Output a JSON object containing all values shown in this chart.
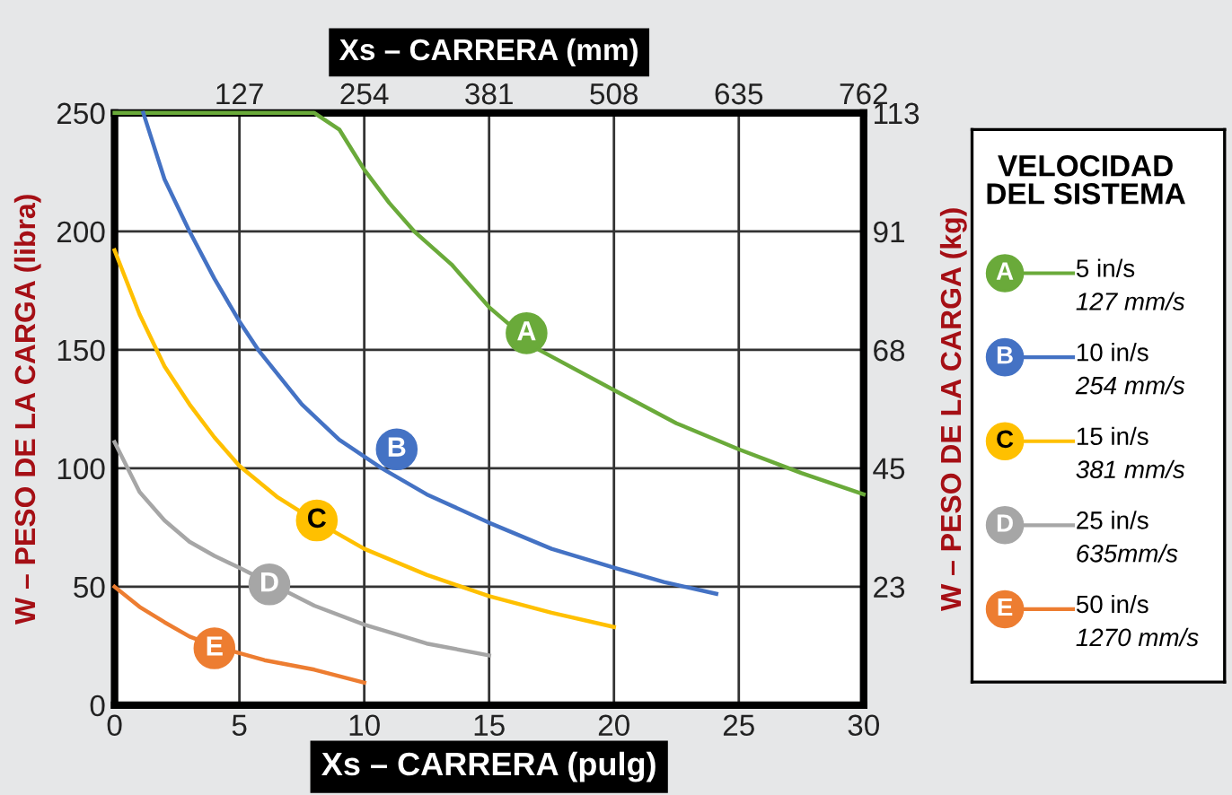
{
  "chart_data": {
    "type": "line",
    "xlabel": "Xs – CARRERA (pulg)",
    "x2label": "Xs – CARRERA (mm)",
    "ylabel": "W – PESO DE LA CARGA (libra)",
    "y2label": "W – PESO DE LA CARGA (kg)",
    "legend_title": "VELOCIDAD\nDEL SISTEMA",
    "legend": "right",
    "xlim": [
      0,
      30
    ],
    "xticks": [
      0,
      5,
      10,
      15,
      20,
      25,
      30
    ],
    "ylim": [
      0,
      250
    ],
    "yticks": [
      0,
      50,
      100,
      150,
      200,
      250
    ],
    "x2lim": [
      0,
      762
    ],
    "x2ticks": [
      127,
      254,
      381,
      508,
      635,
      762
    ],
    "y2lim": [
      0,
      113.4
    ],
    "y2ticks": [
      {
        "value": 22.7,
        "label": "23"
      },
      {
        "value": 45.4,
        "label": "45"
      },
      {
        "value": 68.0,
        "label": "68"
      },
      {
        "value": 90.7,
        "label": "91"
      },
      {
        "value": 113.4,
        "label": "113"
      }
    ],
    "grid": true,
    "marker": "none",
    "line_style": "solid",
    "series": [
      {
        "name": "5 in/s\n127 mm/s",
        "color": "#6aaa3a",
        "x": [
          0,
          2,
          4,
          6,
          8,
          9,
          10,
          11,
          12,
          13.5,
          15,
          17,
          20,
          22.5,
          25,
          27.5,
          30
        ],
        "values": [
          250,
          250,
          250,
          250,
          250,
          243,
          226,
          212,
          200,
          186,
          168,
          150,
          133,
          119,
          108,
          98,
          89
        ]
      },
      {
        "name": "10 in/s\n254 mm/s",
        "color": "#4472c4",
        "x": [
          1.15,
          2,
          3,
          4,
          5,
          5.75,
          7.5,
          9,
          10.7,
          12.5,
          15,
          17.5,
          20,
          22,
          24.1
        ],
        "values": [
          250,
          222,
          200,
          180,
          162,
          150,
          127,
          112,
          100,
          89,
          77,
          66,
          58,
          52,
          47
        ]
      },
      {
        "name": "15 in/s\n381 mm/s",
        "color": "#ffc000",
        "x": [
          0,
          1,
          2,
          3,
          4,
          5,
          6.5,
          8,
          10,
          12.5,
          15,
          17.5,
          20
        ],
        "values": [
          192,
          165,
          143,
          127,
          113,
          101,
          88,
          78,
          66,
          55,
          46,
          39,
          33
        ]
      },
      {
        "name": "25 in/s\n635mm/s",
        "color": "#a6a6a6",
        "x": [
          0,
          1,
          2,
          3,
          4,
          5,
          8,
          10,
          12.5,
          15
        ],
        "values": [
          111,
          90,
          78,
          69,
          63,
          58,
          42,
          34,
          26,
          21
        ]
      },
      {
        "name": "50 in/s\n1270 mm/s",
        "color": "#ed7d31",
        "x": [
          0,
          1,
          2,
          3,
          4,
          5,
          6,
          8,
          10
        ],
        "values": [
          50,
          41.5,
          35,
          29,
          25,
          22,
          19,
          15,
          9.5
        ]
      }
    ],
    "annotations": [
      {
        "text": "A",
        "x": 16.5,
        "y": 157
      },
      {
        "text": "B",
        "x": 11.3,
        "y": 108
      },
      {
        "text": "C",
        "x": 8.1,
        "y": 78
      },
      {
        "text": "D",
        "x": 6.2,
        "y": 51
      },
      {
        "text": "E",
        "x": 4.0,
        "y": 24
      }
    ]
  }
}
